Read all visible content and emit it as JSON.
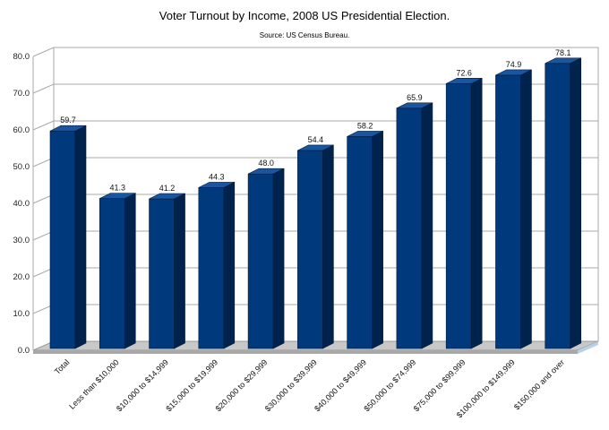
{
  "chart_data": {
    "type": "bar",
    "title": "Voter Turnout by Income, 2008 US Presidential Election.",
    "subtitle": "Source: US Census Bureau.",
    "xlabel": "",
    "ylabel": "",
    "ylim": [
      0,
      80
    ],
    "yticks": [
      "0.0",
      "10.0",
      "20.0",
      "30.0",
      "40.0",
      "50.0",
      "60.0",
      "70.0",
      "80.0"
    ],
    "grid": true,
    "style": "3d",
    "categories": [
      "Total",
      "Less than $10,000",
      "$10,000 to $14,999",
      "$15,000 to $19,999",
      "$20,000 to $29,999",
      "$30,000 to $39,999",
      "$40,000 to $49,999",
      "$50,000 to $74,999",
      "$75,000 to $99,999",
      "$100,000 to $149,999",
      "$150,000 and over"
    ],
    "values": [
      59.7,
      41.3,
      41.2,
      44.3,
      48.0,
      54.4,
      58.2,
      65.9,
      72.6,
      74.9,
      78.1
    ],
    "data_labels": [
      "59.7",
      "41.3",
      "41.2",
      "44.3",
      "48.0",
      "54.4",
      "58.2",
      "65.9",
      "72.6",
      "74.9",
      "78.1"
    ],
    "colors": {
      "bar": "#003a7d",
      "bar_side": "#00234d",
      "bar_top": "#1a56a0",
      "floor": "#c8c8c8"
    }
  }
}
